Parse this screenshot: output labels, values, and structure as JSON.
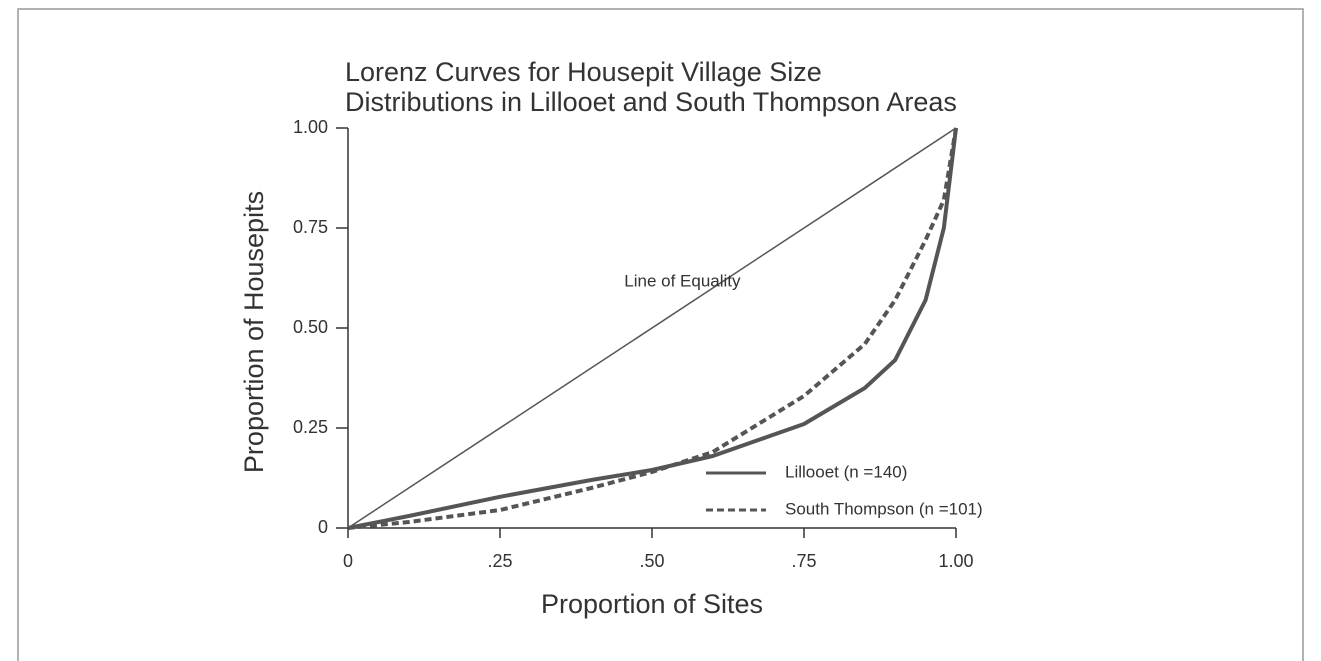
{
  "chart_data": {
    "type": "line",
    "title": [
      "Lorenz Curves for Housepit Village Size",
      "Distributions in Lillooet and South Thompson Areas"
    ],
    "xlabel": "Proportion of Sites",
    "ylabel": "Proportion of Housepits",
    "xlim": [
      0,
      1
    ],
    "ylim": [
      0,
      1
    ],
    "xticks": [
      0,
      {
        "value": 0.25,
        "label": ".25"
      },
      {
        "value": 0.5,
        "label": ".50"
      },
      {
        "value": 0.75,
        "label": ".75"
      },
      {
        "value": 1,
        "label": "1.00"
      }
    ],
    "yticks": [
      0,
      0.25,
      {
        "value": 0.5,
        "label": "0.50"
      },
      0.75,
      {
        "value": 1,
        "label": "1.00"
      }
    ],
    "reference_line": {
      "label": "Line of Equality",
      "x": [
        0,
        1
      ],
      "y": [
        0,
        1
      ],
      "color": "#555555"
    },
    "x": [
      0,
      0.1,
      0.25,
      0.4,
      0.5,
      0.6,
      0.75,
      0.85,
      0.9,
      0.95,
      0.98,
      1
    ],
    "series": [
      {
        "name": "Lillooet (n =140)",
        "color": "#555555",
        "dashed": false,
        "values": [
          0,
          0.03,
          0.078,
          0.12,
          0.145,
          0.18,
          0.26,
          0.35,
          0.42,
          0.57,
          0.75,
          1
        ]
      },
      {
        "name": "South Thompson (n =101)",
        "color": "#555555",
        "dashed": true,
        "values": [
          0,
          0.015,
          0.045,
          0.1,
          0.14,
          0.19,
          0.33,
          0.46,
          0.57,
          0.72,
          0.82,
          1
        ]
      }
    ],
    "legend": "lower right"
  }
}
